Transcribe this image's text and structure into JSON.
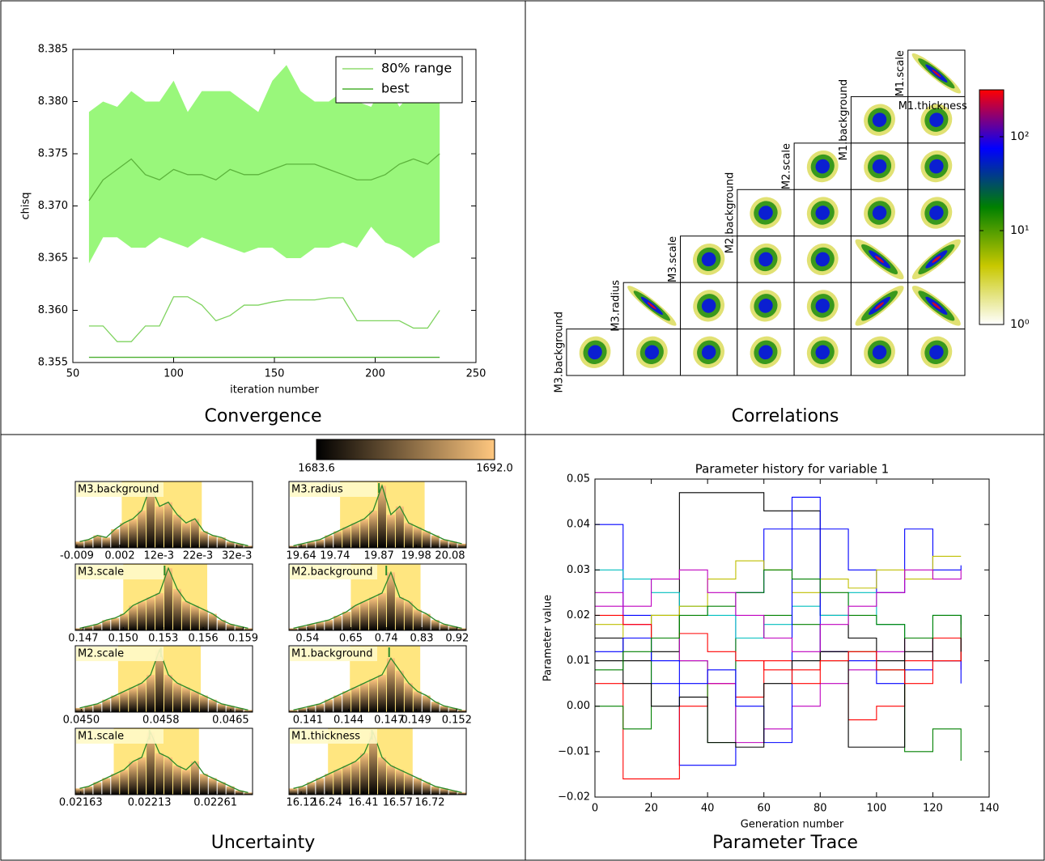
{
  "chart_data": [
    {
      "type": "band-line",
      "caption": "Convergence",
      "xlabel": "iteration number",
      "ylabel": "chisq",
      "x": [
        58,
        65,
        72,
        79,
        86,
        93,
        100,
        107,
        114,
        121,
        128,
        135,
        142,
        149,
        156,
        163,
        170,
        177,
        184,
        191,
        198,
        205,
        212,
        219,
        226,
        232
      ],
      "series": [
        {
          "name": "80% range",
          "color": "#99f77b",
          "upper": [
            8.379,
            8.38,
            8.3795,
            8.381,
            8.38,
            8.38,
            8.382,
            8.379,
            8.381,
            8.381,
            8.381,
            8.38,
            8.379,
            8.382,
            8.3835,
            8.381,
            8.38,
            8.38,
            8.381,
            8.38,
            8.3795,
            8.382,
            8.3795,
            8.381,
            8.38,
            8.38
          ],
          "lower": [
            8.3645,
            8.367,
            8.367,
            8.366,
            8.366,
            8.367,
            8.3665,
            8.366,
            8.367,
            8.3665,
            8.366,
            8.3655,
            8.366,
            8.366,
            8.365,
            8.365,
            8.366,
            8.366,
            8.3665,
            8.366,
            8.368,
            8.3665,
            8.366,
            8.365,
            8.366,
            8.3665
          ]
        },
        {
          "color": "#5cb33c",
          "values": [
            8.3705,
            8.3725,
            8.3735,
            8.3745,
            8.373,
            8.3725,
            8.3735,
            8.373,
            8.373,
            8.3725,
            8.3735,
            8.373,
            8.373,
            8.3735,
            8.374,
            8.374,
            8.374,
            8.3735,
            8.373,
            8.3725,
            8.3725,
            8.373,
            8.374,
            8.3745,
            8.374,
            8.375
          ]
        },
        {
          "color": "#7fd35f",
          "values": [
            8.3585,
            8.3585,
            8.357,
            8.357,
            8.3585,
            8.3585,
            8.3613,
            8.3613,
            8.3605,
            8.359,
            8.3595,
            8.3605,
            8.3605,
            8.3608,
            8.361,
            8.361,
            8.361,
            8.3612,
            8.3612,
            8.359,
            8.359,
            8.359,
            8.359,
            8.3583,
            8.3583,
            8.36
          ]
        },
        {
          "name": "best",
          "color": "#4cb030",
          "values": [
            8.3555,
            8.3555,
            8.3555,
            8.3555,
            8.3555,
            8.3555,
            8.3555,
            8.3555,
            8.3555,
            8.3555,
            8.3555,
            8.3555,
            8.3555,
            8.3555,
            8.3555,
            8.3555,
            8.3555,
            8.3555,
            8.3555,
            8.3555,
            8.3555,
            8.3555,
            8.3555,
            8.3555,
            8.3555,
            8.3555
          ]
        }
      ],
      "xlim": [
        50,
        250
      ],
      "xticks": [
        50,
        100,
        150,
        200,
        250
      ],
      "ylim": [
        8.355,
        8.385
      ],
      "yticks": [
        8.355,
        {
          "value": 8.36,
          "label": "8.360"
        },
        8.365,
        {
          "value": 8.37,
          "label": "8.370"
        },
        8.375,
        {
          "value": 8.38,
          "label": "8.380"
        },
        8.385
      ],
      "legend": "upper right"
    },
    {
      "type": "correlation-matrix",
      "caption": "Correlations",
      "labels": [
        "M3.background",
        "M3.radius",
        "M3.scale",
        "M2.background",
        "M2.scale",
        "M1.background",
        "M1.scale",
        "M1.thickness"
      ],
      "correlation": [
        [
          -0.95
        ],
        [
          0,
          0
        ],
        [
          0,
          0,
          0
        ],
        [
          0.1,
          0,
          0,
          0
        ],
        [
          0.1,
          0,
          0,
          -0.9,
          0.9
        ],
        [
          -0.95,
          0,
          0,
          0,
          0.9,
          -0.9
        ],
        [
          0,
          0,
          0,
          0,
          0,
          0,
          0
        ]
      ],
      "log": true,
      "clim": [
        1,
        316
      ],
      "cticks": [
        {
          "value": 1,
          "label": "10⁰"
        },
        {
          "value": 10,
          "label": "10¹"
        },
        {
          "value": 100,
          "label": "10²"
        }
      ],
      "colormap": [
        "#ffffff",
        "#c8c800",
        "#008000",
        "#0000ff",
        "#ff0000"
      ]
    },
    {
      "type": "histogram-grid",
      "caption": "Uncertainty",
      "ylim": [
        0,
        32
      ],
      "colorbar": {
        "clim": [
          1683.6,
          1692.0
        ],
        "ticks": [
          1683.6,
          {
            "value": 1692.0,
            "label": "1692.0"
          }
        ],
        "colors": [
          "#000000",
          "#ffc77f"
        ]
      },
      "panels": [
        {
          "title": "M3.background",
          "xlim": [
            -0.0094,
            0.036
          ],
          "xticks": [
            -0.009,
            0.002,
            {
              "value": 0.012,
              "label": "12e-3"
            },
            {
              "value": 0.022,
              "label": "22e-3"
            },
            {
              "value": 0.032,
              "label": "32e-3"
            }
          ],
          "interval": [
            0.0025,
            0.023
          ],
          "best": 0.01,
          "values": [
            3,
            4,
            6,
            5,
            9,
            12,
            14,
            18,
            30,
            20,
            22,
            16,
            12,
            14,
            8,
            6,
            5,
            3,
            2,
            1
          ]
        },
        {
          "title": "M3.radius",
          "xlim": [
            19.604,
            20.128
          ],
          "xticks": [
            19.64,
            19.74,
            19.87,
            19.98,
            20.08
          ],
          "interval": [
            19.755,
            20.005
          ],
          "best": 19.87,
          "values": [
            1,
            2,
            3,
            4,
            6,
            8,
            10,
            12,
            14,
            18,
            30,
            16,
            20,
            12,
            10,
            8,
            6,
            4,
            3,
            2
          ]
        },
        {
          "title": "M3.scale",
          "xlim": [
            0.1464,
            0.1597
          ],
          "xticks": [
            0.147,
            {
              "value": 0.15,
              "label": "0.150"
            },
            0.153,
            0.156,
            0.159
          ],
          "interval": [
            0.15,
            0.1563
          ],
          "best": 0.1531,
          "values": [
            1,
            2,
            3,
            5,
            6,
            8,
            12,
            14,
            16,
            18,
            30,
            20,
            14,
            12,
            10,
            8,
            5,
            3,
            2,
            1
          ]
        },
        {
          "title": "M2.background",
          "xlim": [
            0.493,
            0.943
          ],
          "xticks": [
            0.54,
            0.65,
            0.74,
            0.83,
            0.92
          ],
          "interval": [
            0.65,
            0.827
          ],
          "best": 0.74,
          "values": [
            1,
            2,
            3,
            4,
            5,
            7,
            9,
            12,
            14,
            16,
            18,
            28,
            16,
            14,
            10,
            8,
            5,
            3,
            2,
            1
          ]
        },
        {
          "title": "M2.scale",
          "xlim": [
            0.04494,
            0.04672
          ],
          "xticks": [
            {
              "value": 0.045,
              "label": "0.0450"
            },
            0.0458,
            0.0465
          ],
          "interval": [
            0.04537,
            0.0462
          ],
          "best": 0.0458,
          "values": [
            2,
            3,
            4,
            6,
            8,
            10,
            12,
            14,
            18,
            30,
            18,
            14,
            12,
            10,
            8,
            6,
            4,
            3,
            2,
            1
          ]
        },
        {
          "title": "M1.background",
          "xlim": [
            0.1396,
            0.1527
          ],
          "xticks": [
            0.141,
            0.144,
            0.147,
            0.149,
            0.152
          ],
          "interval": [
            0.1441,
            0.1493
          ],
          "best": 0.147,
          "values": [
            1,
            2,
            3,
            4,
            6,
            8,
            10,
            12,
            14,
            16,
            18,
            26,
            20,
            14,
            10,
            8,
            5,
            3,
            2,
            1
          ]
        },
        {
          "title": "M1.scale",
          "xlim": [
            0.02159,
            0.02288
          ],
          "xticks": [
            0.02163,
            0.02213,
            0.02261
          ],
          "interval": [
            0.02187,
            0.02249
          ],
          "best": 0.02213,
          "values": [
            3,
            4,
            6,
            8,
            10,
            12,
            16,
            18,
            30,
            20,
            18,
            14,
            12,
            16,
            10,
            8,
            6,
            4,
            2,
            1
          ]
        },
        {
          "title": "M1.thickness",
          "xlim": [
            16.063,
            16.89
          ],
          "xticks": [
            16.12,
            16.24,
            16.41,
            16.57,
            16.72
          ],
          "interval": [
            16.245,
            16.64
          ],
          "best": 16.45,
          "values": [
            3,
            4,
            6,
            8,
            10,
            12,
            14,
            16,
            20,
            30,
            18,
            14,
            12,
            10,
            8,
            6,
            4,
            3,
            2,
            1
          ]
        }
      ]
    },
    {
      "type": "line",
      "caption": "Parameter Trace",
      "title": "Parameter history for variable 1",
      "xlabel": "Generation number",
      "ylabel": "Parameter value",
      "step": true,
      "x": [
        0,
        10,
        20,
        30,
        40,
        50,
        60,
        70,
        80,
        90,
        100,
        110,
        120,
        130
      ],
      "series": [
        {
          "color": "#0000ff",
          "values": [
            0.04,
            0.02,
            0.005,
            -0.013,
            -0.013,
            0.025,
            0.039,
            0.039,
            0.039,
            0.03,
            0.025,
            0.039,
            0.03,
            0.031
          ]
        },
        {
          "color": "#000000",
          "values": [
            0.015,
            0.01,
            0.012,
            0.047,
            0.047,
            0.047,
            0.043,
            0.043,
            0.02,
            0.015,
            0.01,
            0.012,
            0.015,
            0.012
          ]
        },
        {
          "color": "#ff0000",
          "values": [
            0.005,
            -0.016,
            -0.016,
            0.0,
            0.005,
            0.002,
            0.01,
            0.008,
            0.012,
            -0.003,
            0.0,
            0.01,
            0.015,
            0.01
          ]
        },
        {
          "color": "#008000",
          "values": [
            0.0,
            -0.005,
            0.02,
            0.01,
            -0.008,
            0.015,
            0.02,
            0.018,
            0.01,
            0.012,
            0.008,
            -0.01,
            -0.005,
            -0.012
          ]
        },
        {
          "color": "#00bfbf",
          "values": [
            0.03,
            0.028,
            0.025,
            0.022,
            0.02,
            0.015,
            0.018,
            0.022,
            0.02,
            0.025,
            0.018,
            0.015,
            0.02,
            0.018
          ]
        },
        {
          "color": "#bf00bf",
          "values": [
            0.022,
            0.018,
            0.015,
            0.01,
            0.005,
            -0.008,
            -0.005,
            0.0,
            0.005,
            0.008,
            0.012,
            0.015,
            0.01,
            0.008
          ]
        },
        {
          "color": "#bfbf00",
          "values": [
            0.018,
            0.015,
            0.02,
            0.022,
            0.028,
            0.032,
            0.03,
            0.025,
            0.028,
            0.026,
            0.03,
            0.028,
            0.033,
            0.033
          ]
        },
        {
          "color": "#0000ff",
          "values": [
            0.012,
            0.015,
            0.01,
            0.005,
            0.008,
            0.0,
            -0.008,
            0.046,
            0.012,
            0.01,
            0.005,
            0.008,
            0.01,
            0.005
          ]
        },
        {
          "color": "#000000",
          "values": [
            0.01,
            0.005,
            0.0,
            0.002,
            -0.008,
            -0.009,
            0.005,
            0.01,
            0.012,
            -0.009,
            -0.009,
            0.015,
            0.01,
            0.02
          ]
        },
        {
          "color": "#ff0000",
          "values": [
            0.02,
            0.018,
            0.015,
            0.016,
            0.012,
            0.01,
            0.008,
            0.005,
            0.01,
            0.012,
            0.008,
            0.005,
            0.01,
            0.012
          ]
        },
        {
          "color": "#008000",
          "values": [
            0.008,
            0.012,
            0.015,
            0.02,
            0.022,
            0.025,
            0.03,
            0.028,
            0.025,
            0.02,
            0.018,
            0.015,
            0.02,
            0.015
          ]
        },
        {
          "color": "#bf00bf",
          "values": [
            0.025,
            0.022,
            0.028,
            0.03,
            0.025,
            0.02,
            0.015,
            0.012,
            0.018,
            0.022,
            0.025,
            0.03,
            0.028,
            0.03
          ]
        }
      ],
      "xlim": [
        0,
        140
      ],
      "xticks": [
        0,
        20,
        40,
        60,
        80,
        100,
        120,
        140
      ],
      "ylim": [
        -0.02,
        0.05
      ],
      "yticks": [
        {
          "value": -0.02,
          "label": "−0.02"
        },
        {
          "value": -0.01,
          "label": "−0.01"
        },
        {
          "value": 0,
          "label": "0.00"
        },
        0.01,
        0.02,
        0.03,
        0.04,
        0.05
      ]
    }
  ]
}
